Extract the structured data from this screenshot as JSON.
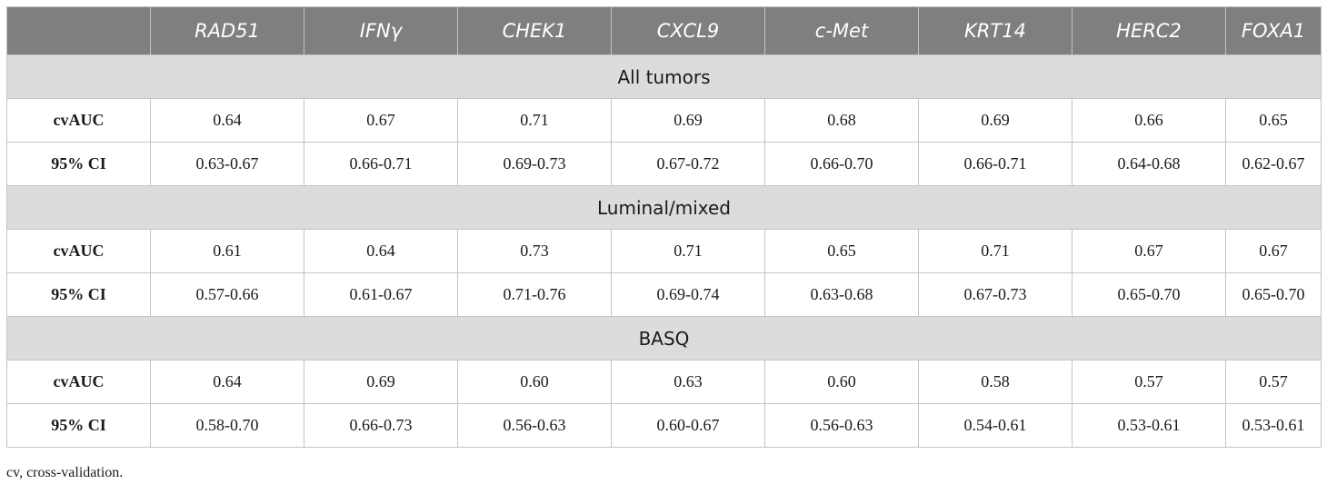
{
  "table": {
    "headers": [
      "",
      "RAD51",
      "IFNγ",
      "CHEK1",
      "CXCL9",
      "c-Met",
      "KRT14",
      "HERC2",
      "FOXA1"
    ],
    "groups": [
      {
        "label": "All tumors",
        "rows": [
          {
            "label": "cvAUC",
            "values": [
              "0.64",
              "0.67",
              "0.71",
              "0.69",
              "0.68",
              "0.69",
              "0.66",
              "0.65"
            ]
          },
          {
            "label": "95% CI",
            "values": [
              "0.63-0.67",
              "0.66-0.71",
              "0.69-0.73",
              "0.67-0.72",
              "0.66-0.70",
              "0.66-0.71",
              "0.64-0.68",
              "0.62-0.67"
            ]
          }
        ]
      },
      {
        "label": "Luminal/mixed",
        "rows": [
          {
            "label": "cvAUC",
            "values": [
              "0.61",
              "0.64",
              "0.73",
              "0.71",
              "0.65",
              "0.71",
              "0.67",
              "0.67"
            ]
          },
          {
            "label": "95% CI",
            "values": [
              "0.57-0.66",
              "0.61-0.67",
              "0.71-0.76",
              "0.69-0.74",
              "0.63-0.68",
              "0.67-0.73",
              "0.65-0.70",
              "0.65-0.70"
            ]
          }
        ]
      },
      {
        "label": "BASQ",
        "rows": [
          {
            "label": "cvAUC",
            "values": [
              "0.64",
              "0.69",
              "0.60",
              "0.63",
              "0.60",
              "0.58",
              "0.57",
              "0.57"
            ]
          },
          {
            "label": "95% CI",
            "values": [
              "0.58-0.70",
              "0.66-0.73",
              "0.56-0.63",
              "0.60-0.67",
              "0.56-0.63",
              "0.54-0.61",
              "0.53-0.61",
              "0.53-0.61"
            ]
          }
        ]
      }
    ]
  },
  "footnote": "cv, cross-validation."
}
